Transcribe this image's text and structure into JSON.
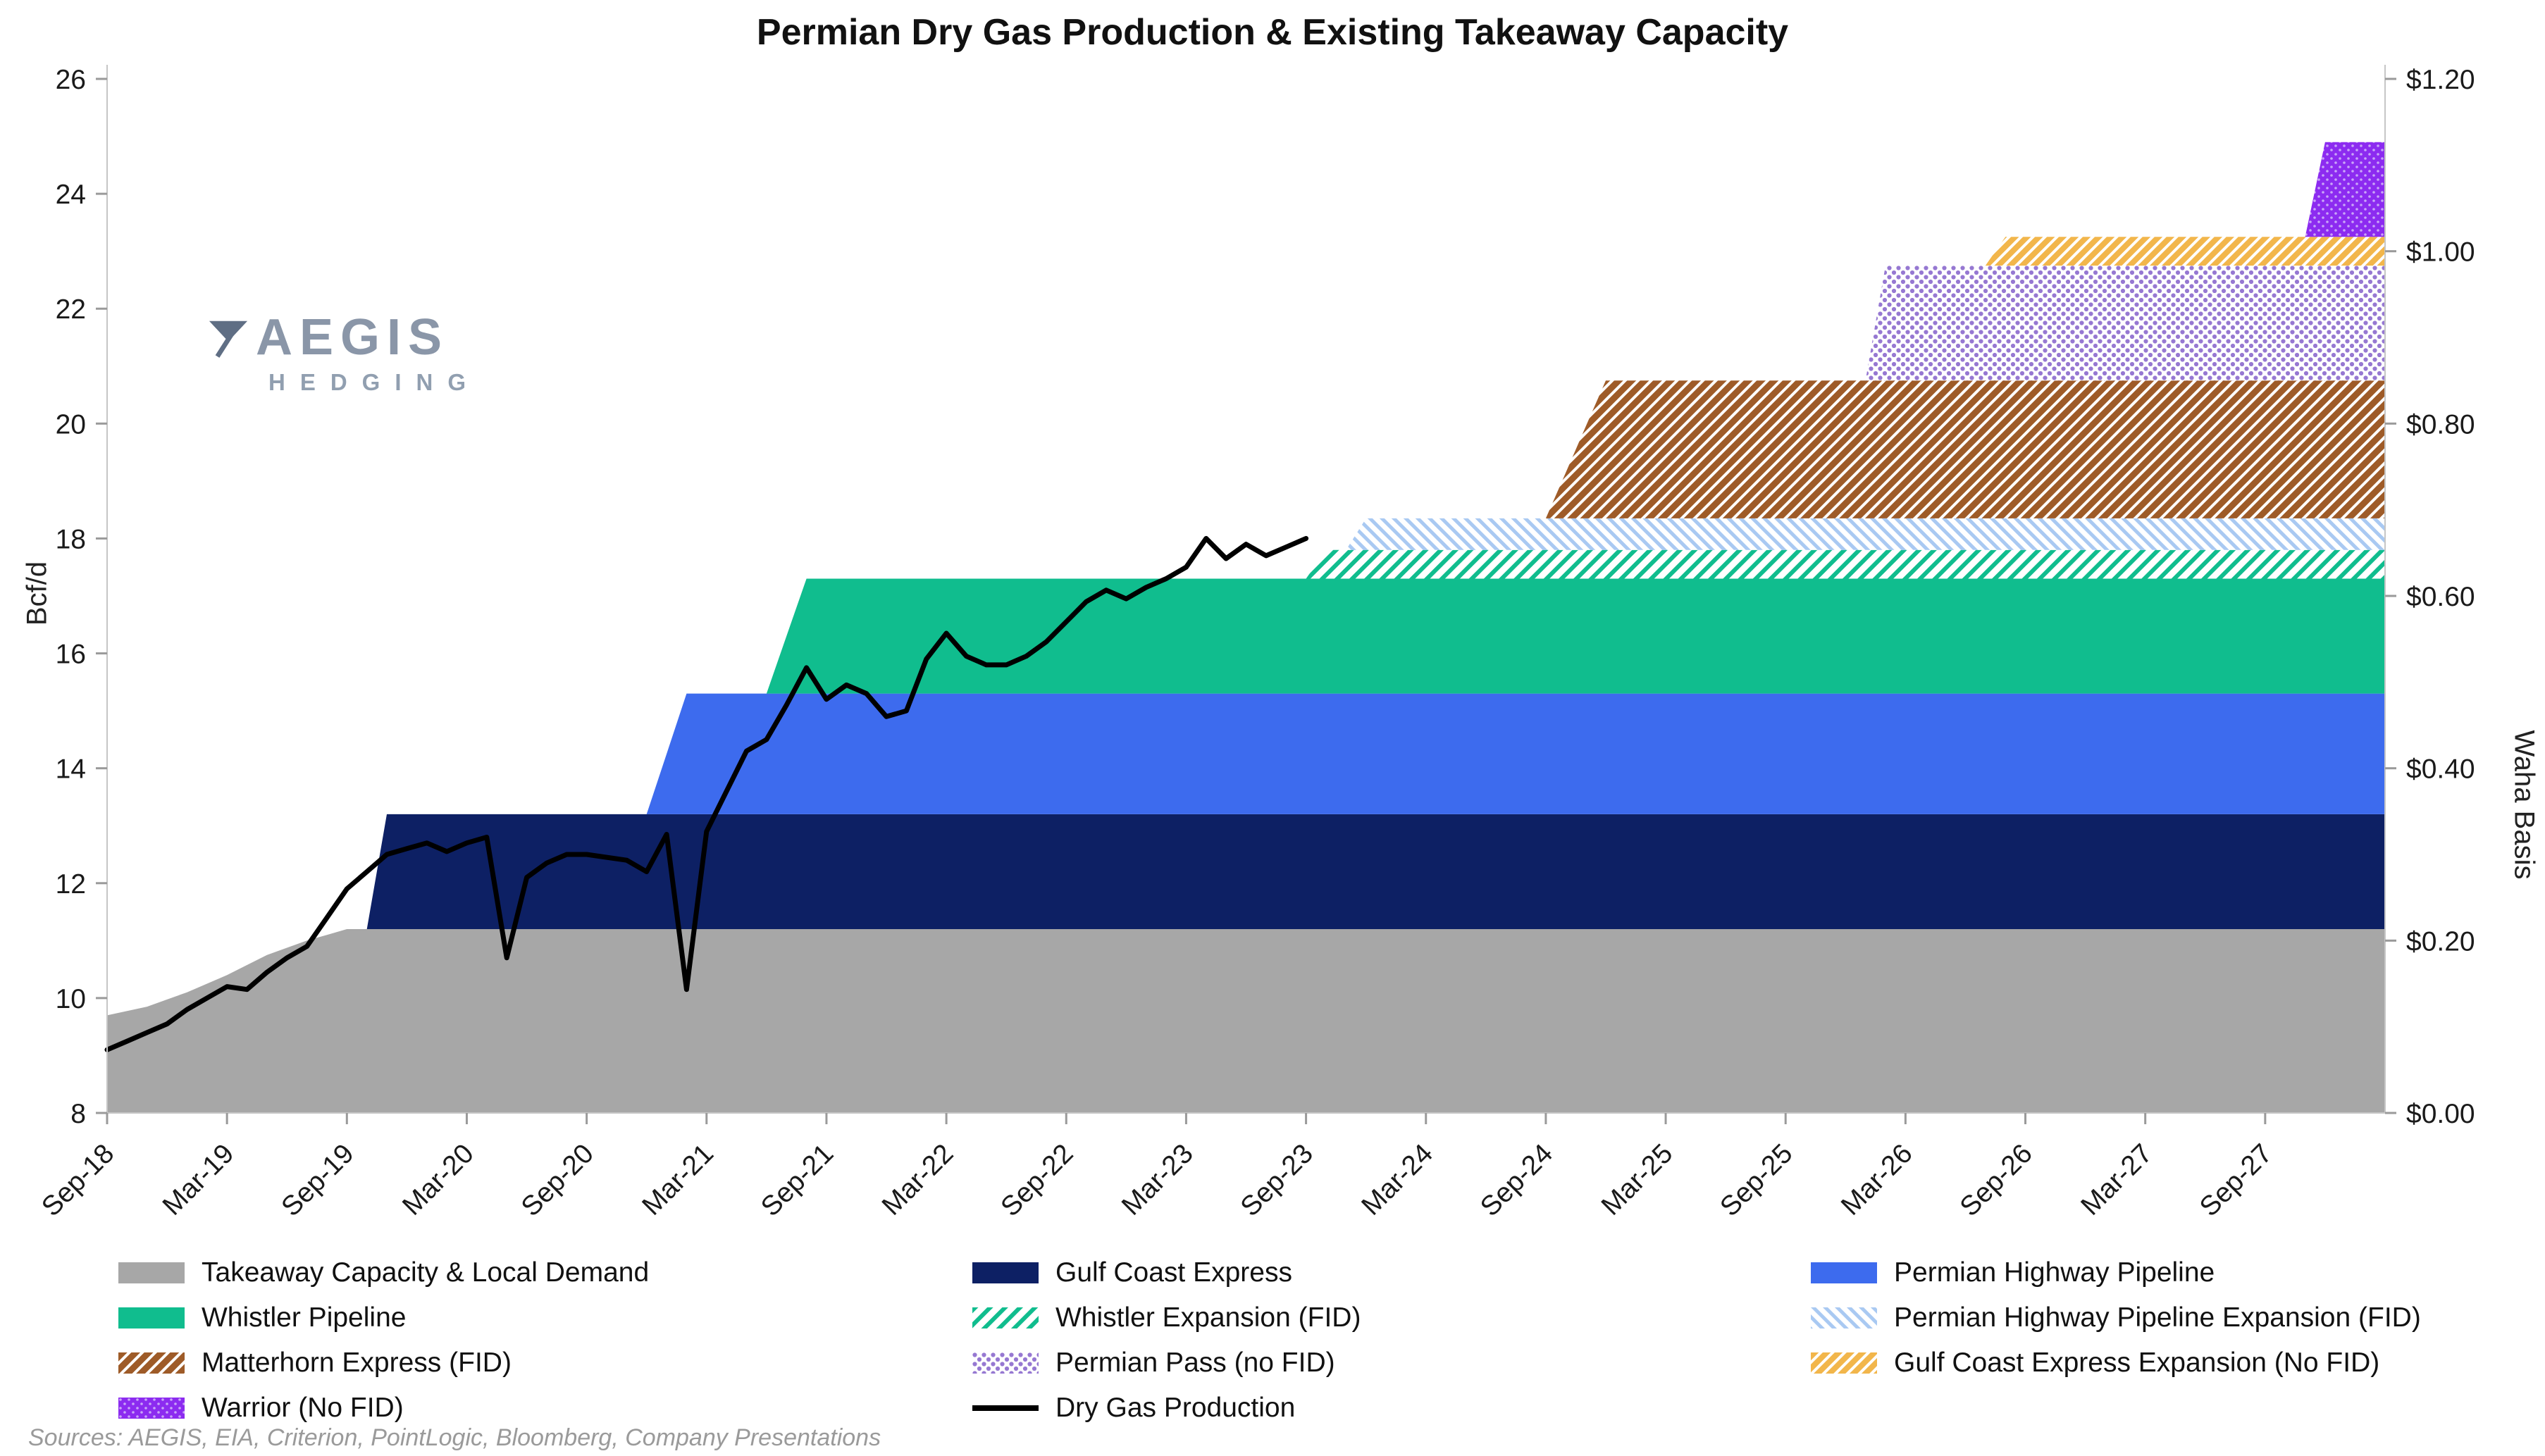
{
  "title": "Permian Dry Gas Production & Existing Takeaway Capacity",
  "watermark": {
    "name": "AEGIS",
    "subtitle": "HEDGING"
  },
  "source": "Sources: AEGIS, EIA, Criterion, PointLogic, Bloomberg, Company Presentations",
  "legend": {
    "rows": [
      [
        "Takeaway Capacity & Local Demand",
        "Gulf Coast Express",
        "Permian Highway Pipeline"
      ],
      [
        "Whistler Pipeline",
        "Whistler Expansion (FID)",
        "Permian Highway Pipeline Expansion (FID)"
      ],
      [
        "Matterhorn Express (FID)",
        "Permian Pass (no FID)",
        "Gulf Coast Express Expansion (No FID)"
      ],
      [
        "Warrior (No FID)",
        "Dry Gas Production",
        ""
      ]
    ]
  },
  "chart_data": {
    "type": "area",
    "title": "Permian Dry Gas Production & Existing Takeaway Capacity",
    "units": "Bcf/d",
    "stacking_note": "Stacked capacity areas. First layer is absolute capacity (Bcf/d); each subsequent layer is incremental capacity added on top. Breakpoints are [month_index_from_Sep-18, value] with linear interpolation.",
    "left_axis": {
      "label": "Bcf/d",
      "min": 8,
      "max": 26,
      "ticks": [
        8,
        10,
        12,
        14,
        16,
        18,
        20,
        22,
        24,
        26
      ]
    },
    "right_axis": {
      "label": "Waha Basis",
      "ticks": [
        "$0.00",
        "$0.20",
        "$0.40",
        "$0.60",
        "$0.80",
        "$1.00",
        "$1.20"
      ]
    },
    "x_axis": {
      "start_label": "Sep-18",
      "months_total": 114,
      "tick_interval_months": 6,
      "tick_labels": [
        "Sep-18",
        "Mar-19",
        "Sep-19",
        "Mar-20",
        "Sep-20",
        "Mar-21",
        "Sep-21",
        "Mar-22",
        "Sep-22",
        "Mar-23",
        "Sep-23",
        "Mar-24",
        "Sep-24",
        "Mar-25",
        "Sep-25",
        "Mar-26",
        "Sep-26",
        "Mar-27",
        "Sep-27"
      ]
    },
    "layers": [
      {
        "name": "Takeaway Capacity & Local Demand",
        "mode": "absolute",
        "fill": {
          "style": "solid",
          "color": "#a7a7a7"
        },
        "breakpoints": [
          [
            0,
            9.7
          ],
          [
            2,
            9.85
          ],
          [
            4,
            10.1
          ],
          [
            6,
            10.4
          ],
          [
            8,
            10.75
          ],
          [
            10,
            11.0
          ],
          [
            12,
            11.2
          ],
          [
            114,
            11.2
          ]
        ]
      },
      {
        "name": "Gulf Coast Express",
        "mode": "increment",
        "fill": {
          "style": "solid",
          "color": "#0d2064"
        },
        "breakpoints": [
          [
            0,
            0
          ],
          [
            13,
            0
          ],
          [
            14,
            2.0
          ],
          [
            114,
            2.0
          ]
        ]
      },
      {
        "name": "Permian Highway Pipeline",
        "mode": "increment",
        "fill": {
          "style": "solid",
          "color": "#3d6bee"
        },
        "breakpoints": [
          [
            0,
            0
          ],
          [
            27,
            0
          ],
          [
            29,
            2.1
          ],
          [
            114,
            2.1
          ]
        ]
      },
      {
        "name": "Whistler Pipeline",
        "mode": "increment",
        "fill": {
          "style": "solid",
          "color": "#10bd8e"
        },
        "breakpoints": [
          [
            0,
            0
          ],
          [
            33,
            0
          ],
          [
            35,
            2.0
          ],
          [
            114,
            2.0
          ]
        ]
      },
      {
        "name": "Whistler Expansion (FID)",
        "mode": "increment",
        "fill": {
          "style": "stripes",
          "color": "#10bd8e",
          "weight": 6,
          "period": 15,
          "angle": 45
        },
        "breakpoints": [
          [
            0,
            0
          ],
          [
            60,
            0
          ],
          [
            61,
            0.5
          ],
          [
            114,
            0.5
          ]
        ]
      },
      {
        "name": "Permian Highway Pipeline Expansion (FID)",
        "mode": "increment",
        "fill": {
          "style": "stripes",
          "color": "#a9c9f2",
          "weight": 5,
          "period": 12,
          "angle": -45
        },
        "breakpoints": [
          [
            0,
            0
          ],
          [
            62,
            0
          ],
          [
            63,
            0.55
          ],
          [
            114,
            0.55
          ]
        ]
      },
      {
        "name": "Matterhorn Express (FID)",
        "mode": "increment",
        "fill": {
          "style": "stripes",
          "color": "#9e5b28",
          "weight": 9,
          "period": 13,
          "angle": 45
        },
        "breakpoints": [
          [
            0,
            0
          ],
          [
            72,
            0
          ],
          [
            75,
            2.4
          ],
          [
            114,
            2.4
          ]
        ]
      },
      {
        "name": "Permian Pass (no FID)",
        "mode": "increment",
        "fill": {
          "style": "dots",
          "color": "#9678d2"
        },
        "breakpoints": [
          [
            0,
            0
          ],
          [
            88,
            0
          ],
          [
            89,
            2.0
          ],
          [
            114,
            2.0
          ]
        ]
      },
      {
        "name": "Gulf Coast Express Expansion (No FID)",
        "mode": "increment",
        "fill": {
          "style": "stripes",
          "color": "#f2b64b",
          "weight": 8,
          "period": 12,
          "angle": 45
        },
        "breakpoints": [
          [
            0,
            0
          ],
          [
            94,
            0
          ],
          [
            95,
            0.5
          ],
          [
            114,
            0.5
          ]
        ]
      },
      {
        "name": "Warrior (No FID)",
        "mode": "increment",
        "fill": {
          "style": "soliddots",
          "color": "#8c2bf0",
          "dot": "#c9a6f7"
        },
        "breakpoints": [
          [
            0,
            0
          ],
          [
            110,
            0
          ],
          [
            111,
            1.65
          ],
          [
            114,
            1.65
          ]
        ]
      }
    ],
    "line_series": {
      "name": "Dry Gas Production",
      "color": "#000000",
      "start_month": 0,
      "monthly_values": [
        9.1,
        9.25,
        9.4,
        9.55,
        9.8,
        10.0,
        10.2,
        10.15,
        10.45,
        10.7,
        10.9,
        11.4,
        11.9,
        12.2,
        12.5,
        12.6,
        12.7,
        12.55,
        12.7,
        12.8,
        10.7,
        12.1,
        12.35,
        12.5,
        12.5,
        12.45,
        12.4,
        12.2,
        12.85,
        10.15,
        12.9,
        13.6,
        14.3,
        14.5,
        15.1,
        15.75,
        15.2,
        15.45,
        15.3,
        14.9,
        15.0,
        15.9,
        16.35,
        15.95,
        15.8,
        15.8,
        15.95,
        16.2,
        16.55,
        16.9,
        17.1,
        16.95,
        17.15,
        17.3,
        17.5,
        18.0,
        17.65,
        17.9,
        17.7,
        17.85,
        18.0
      ]
    }
  }
}
